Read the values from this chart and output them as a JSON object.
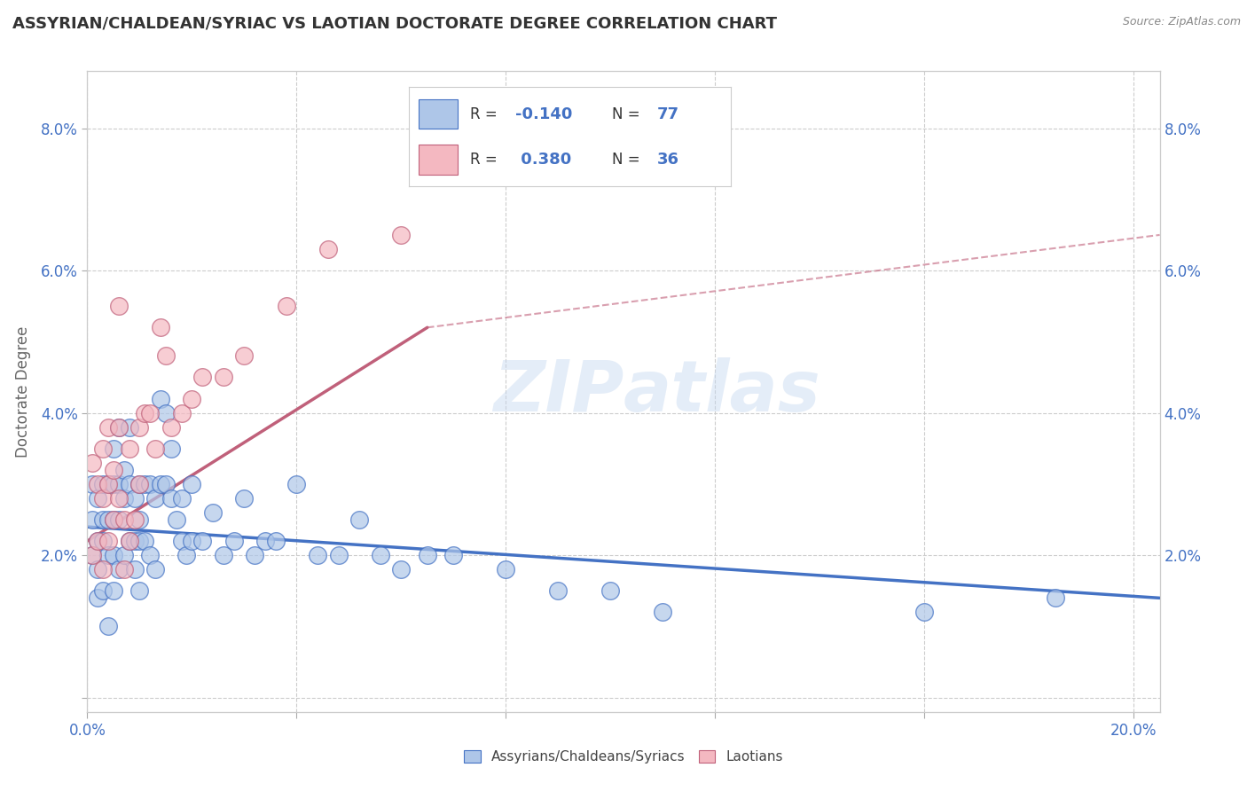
{
  "title": "ASSYRIAN/CHALDEAN/SYRIAC VS LAOTIAN DOCTORATE DEGREE CORRELATION CHART",
  "source": "Source: ZipAtlas.com",
  "ylabel": "Doctorate Degree",
  "xlim": [
    0.0,
    0.205
  ],
  "ylim": [
    -0.002,
    0.088
  ],
  "xticks": [
    0.0,
    0.04,
    0.08,
    0.12,
    0.16,
    0.2
  ],
  "yticks": [
    0.0,
    0.02,
    0.04,
    0.06,
    0.08
  ],
  "xtick_labels_show": [
    "0.0%",
    "20.0%"
  ],
  "ytick_labels": [
    "",
    "2.0%",
    "4.0%",
    "6.0%",
    "8.0%"
  ],
  "blue_color": "#aec6e8",
  "blue_dark": "#4472c4",
  "pink_color": "#f4b8c1",
  "pink_dark": "#c0607a",
  "watermark": "ZIPatlas",
  "R_blue": -0.14,
  "N_blue": 77,
  "R_pink": 0.38,
  "N_pink": 36,
  "blue_scatter_x": [
    0.001,
    0.001,
    0.001,
    0.002,
    0.002,
    0.002,
    0.002,
    0.003,
    0.003,
    0.003,
    0.003,
    0.004,
    0.004,
    0.004,
    0.004,
    0.005,
    0.005,
    0.005,
    0.005,
    0.005,
    0.006,
    0.006,
    0.006,
    0.006,
    0.007,
    0.007,
    0.007,
    0.008,
    0.008,
    0.008,
    0.009,
    0.009,
    0.009,
    0.01,
    0.01,
    0.01,
    0.01,
    0.011,
    0.011,
    0.012,
    0.012,
    0.013,
    0.013,
    0.014,
    0.014,
    0.015,
    0.015,
    0.016,
    0.016,
    0.017,
    0.018,
    0.018,
    0.019,
    0.02,
    0.02,
    0.022,
    0.024,
    0.026,
    0.028,
    0.03,
    0.032,
    0.034,
    0.036,
    0.04,
    0.044,
    0.048,
    0.052,
    0.056,
    0.06,
    0.065,
    0.07,
    0.08,
    0.09,
    0.1,
    0.11,
    0.16,
    0.185
  ],
  "blue_scatter_y": [
    0.03,
    0.025,
    0.02,
    0.028,
    0.022,
    0.018,
    0.014,
    0.03,
    0.025,
    0.022,
    0.015,
    0.03,
    0.025,
    0.02,
    0.01,
    0.035,
    0.03,
    0.025,
    0.02,
    0.015,
    0.038,
    0.03,
    0.025,
    0.018,
    0.032,
    0.028,
    0.02,
    0.038,
    0.03,
    0.022,
    0.028,
    0.022,
    0.018,
    0.03,
    0.025,
    0.022,
    0.015,
    0.03,
    0.022,
    0.03,
    0.02,
    0.028,
    0.018,
    0.042,
    0.03,
    0.04,
    0.03,
    0.035,
    0.028,
    0.025,
    0.028,
    0.022,
    0.02,
    0.03,
    0.022,
    0.022,
    0.026,
    0.02,
    0.022,
    0.028,
    0.02,
    0.022,
    0.022,
    0.03,
    0.02,
    0.02,
    0.025,
    0.02,
    0.018,
    0.02,
    0.02,
    0.018,
    0.015,
    0.015,
    0.012,
    0.012,
    0.014
  ],
  "pink_scatter_x": [
    0.001,
    0.001,
    0.002,
    0.002,
    0.003,
    0.003,
    0.003,
    0.004,
    0.004,
    0.004,
    0.005,
    0.005,
    0.006,
    0.006,
    0.006,
    0.007,
    0.007,
    0.008,
    0.008,
    0.009,
    0.01,
    0.01,
    0.011,
    0.012,
    0.013,
    0.014,
    0.015,
    0.016,
    0.018,
    0.02,
    0.022,
    0.026,
    0.03,
    0.038,
    0.046,
    0.06
  ],
  "pink_scatter_y": [
    0.033,
    0.02,
    0.03,
    0.022,
    0.035,
    0.028,
    0.018,
    0.03,
    0.022,
    0.038,
    0.032,
    0.025,
    0.055,
    0.038,
    0.028,
    0.025,
    0.018,
    0.035,
    0.022,
    0.025,
    0.038,
    0.03,
    0.04,
    0.04,
    0.035,
    0.052,
    0.048,
    0.038,
    0.04,
    0.042,
    0.045,
    0.045,
    0.048,
    0.055,
    0.063,
    0.065
  ],
  "blue_line_x0": 0.0,
  "blue_line_x1": 0.205,
  "blue_line_y0": 0.024,
  "blue_line_y1": 0.014,
  "pink_line_solid_x0": 0.0,
  "pink_line_solid_x1": 0.065,
  "pink_line_y0": 0.022,
  "pink_line_y1": 0.052,
  "pink_line_dash_x0": 0.065,
  "pink_line_dash_x1": 0.205,
  "pink_line_dash_y0": 0.052,
  "pink_line_dash_y1": 0.065,
  "grid_color": "#cccccc",
  "title_color": "#333333",
  "tick_label_color": "#4472c4",
  "legend_text_color": "#4472c4"
}
